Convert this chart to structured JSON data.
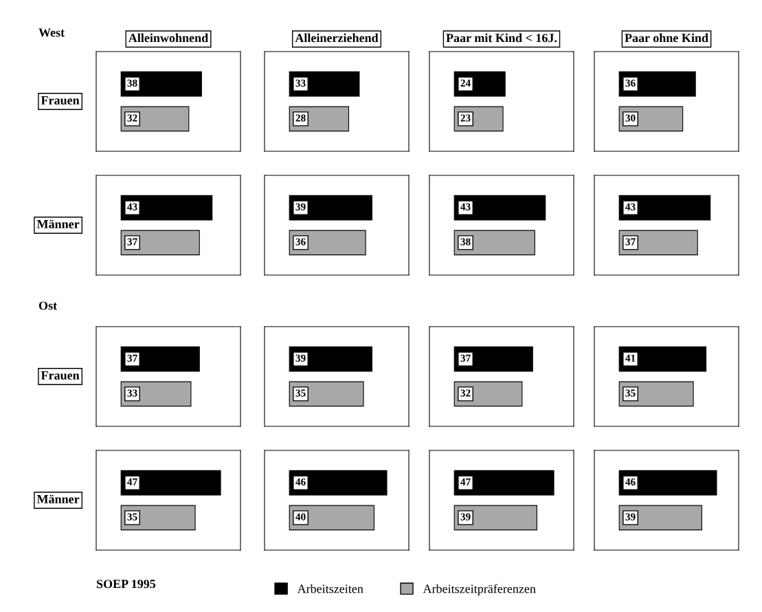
{
  "chart_data": [
    {
      "type": "bar",
      "orientation": "horizontal",
      "title": "Alleinwohnend",
      "ylabel": "Frauen",
      "annotations": [
        "West"
      ],
      "categories": [
        null
      ],
      "data_labels": true,
      "legend": "bottom",
      "series": [
        {
          "name": "Arbeitszeiten",
          "color": "#000000",
          "values": [
            38
          ]
        },
        {
          "name": "Arbeitszeitpräferenzen",
          "color": "#a8a8a8",
          "values": [
            32
          ]
        }
      ]
    },
    {
      "type": "bar",
      "orientation": "horizontal",
      "title": "Alleinerziehend",
      "categories": [
        null
      ],
      "data_labels": true,
      "series": [
        {
          "color": "#000000",
          "values": [
            33
          ]
        },
        {
          "color": "#a8a8a8",
          "values": [
            28
          ]
        }
      ]
    },
    {
      "type": "bar",
      "orientation": "horizontal",
      "title": "Paar mit Kind < 16J.",
      "categories": [
        null
      ],
      "data_labels": true,
      "series": [
        {
          "color": "#000000",
          "values": [
            24
          ]
        },
        {
          "color": "#a8a8a8",
          "values": [
            23
          ]
        }
      ]
    },
    {
      "type": "bar",
      "orientation": "horizontal",
      "title": "Paar ohne Kind",
      "categories": [
        null
      ],
      "data_labels": true,
      "series": [
        {
          "color": "#000000",
          "values": [
            36
          ]
        },
        {
          "color": "#a8a8a8",
          "values": [
            30
          ]
        }
      ]
    },
    {
      "type": "bar",
      "orientation": "horizontal",
      "ylabel": "Männer",
      "categories": [
        null
      ],
      "data_labels": true,
      "series": [
        {
          "color": "#000000",
          "values": [
            43
          ]
        },
        {
          "color": "#a8a8a8",
          "values": [
            37
          ]
        }
      ]
    },
    {
      "type": "bar",
      "orientation": "horizontal",
      "categories": [
        null
      ],
      "data_labels": true,
      "series": [
        {
          "color": "#000000",
          "values": [
            39
          ]
        },
        {
          "color": "#a8a8a8",
          "values": [
            36
          ]
        }
      ]
    },
    {
      "type": "bar",
      "orientation": "horizontal",
      "categories": [
        null
      ],
      "data_labels": true,
      "series": [
        {
          "color": "#000000",
          "values": [
            43
          ]
        },
        {
          "color": "#a8a8a8",
          "values": [
            38
          ]
        }
      ]
    },
    {
      "type": "bar",
      "orientation": "horizontal",
      "categories": [
        null
      ],
      "data_labels": true,
      "series": [
        {
          "color": "#000000",
          "values": [
            43
          ]
        },
        {
          "color": "#a8a8a8",
          "values": [
            37
          ]
        }
      ]
    },
    {
      "type": "bar",
      "orientation": "horizontal",
      "ylabel": "Frauen",
      "annotations": [
        "Ost"
      ],
      "categories": [
        null
      ],
      "data_labels": true,
      "series": [
        {
          "color": "#000000",
          "values": [
            37
          ]
        },
        {
          "color": "#a8a8a8",
          "values": [
            33
          ]
        }
      ]
    },
    {
      "type": "bar",
      "orientation": "horizontal",
      "categories": [
        null
      ],
      "data_labels": true,
      "series": [
        {
          "color": "#000000",
          "values": [
            39
          ]
        },
        {
          "color": "#a8a8a8",
          "values": [
            35
          ]
        }
      ]
    },
    {
      "type": "bar",
      "orientation": "horizontal",
      "categories": [
        null
      ],
      "data_labels": true,
      "series": [
        {
          "color": "#000000",
          "values": [
            37
          ]
        },
        {
          "color": "#a8a8a8",
          "values": [
            32
          ]
        }
      ]
    },
    {
      "type": "bar",
      "orientation": "horizontal",
      "categories": [
        null
      ],
      "data_labels": true,
      "series": [
        {
          "color": "#000000",
          "values": [
            41
          ]
        },
        {
          "color": "#a8a8a8",
          "values": [
            35
          ]
        }
      ]
    },
    {
      "type": "bar",
      "orientation": "horizontal",
      "ylabel": "Männer",
      "annotations": [
        "SOEP 1995"
      ],
      "categories": [
        null
      ],
      "data_labels": true,
      "series": [
        {
          "color": "#000000",
          "values": [
            47
          ]
        },
        {
          "color": "#a8a8a8",
          "values": [
            35
          ]
        }
      ]
    },
    {
      "type": "bar",
      "orientation": "horizontal",
      "categories": [
        null
      ],
      "data_labels": true,
      "series": [
        {
          "color": "#000000",
          "values": [
            46
          ]
        },
        {
          "color": "#a8a8a8",
          "values": [
            40
          ]
        }
      ]
    },
    {
      "type": "bar",
      "orientation": "horizontal",
      "categories": [
        null
      ],
      "data_labels": true,
      "series": [
        {
          "color": "#000000",
          "values": [
            47
          ]
        },
        {
          "color": "#a8a8a8",
          "values": [
            39
          ]
        }
      ]
    },
    {
      "type": "bar",
      "orientation": "horizontal",
      "categories": [
        null
      ],
      "data_labels": true,
      "series": [
        {
          "color": "#000000",
          "values": [
            46
          ]
        },
        {
          "color": "#a8a8a8",
          "values": [
            39
          ]
        }
      ]
    }
  ]
}
